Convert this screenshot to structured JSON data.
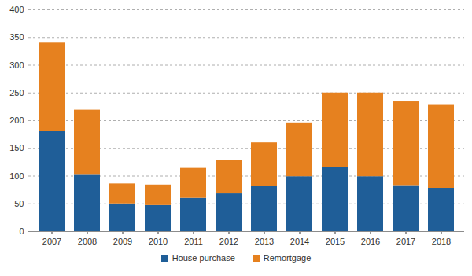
{
  "chart_data": {
    "type": "bar",
    "stacked": true,
    "grid": true,
    "legend": "bottom",
    "categories": [
      "2007",
      "2008",
      "2009",
      "2010",
      "2011",
      "2012",
      "2013",
      "2014",
      "2015",
      "2016",
      "2017",
      "2018"
    ],
    "series": [
      {
        "name": "House purchase",
        "color": "#1f5e98",
        "values": [
          181,
          103,
          50,
          47,
          60,
          68,
          82,
          99,
          116,
          99,
          83,
          78
        ]
      },
      {
        "name": "Remortgage",
        "color": "#e6811f",
        "values": [
          159,
          116,
          36,
          37,
          54,
          61,
          78,
          97,
          134,
          151,
          151,
          151
        ]
      }
    ],
    "ylim": [
      0,
      400
    ],
    "yticks": [
      0,
      50,
      100,
      150,
      200,
      250,
      300,
      350,
      400
    ]
  }
}
